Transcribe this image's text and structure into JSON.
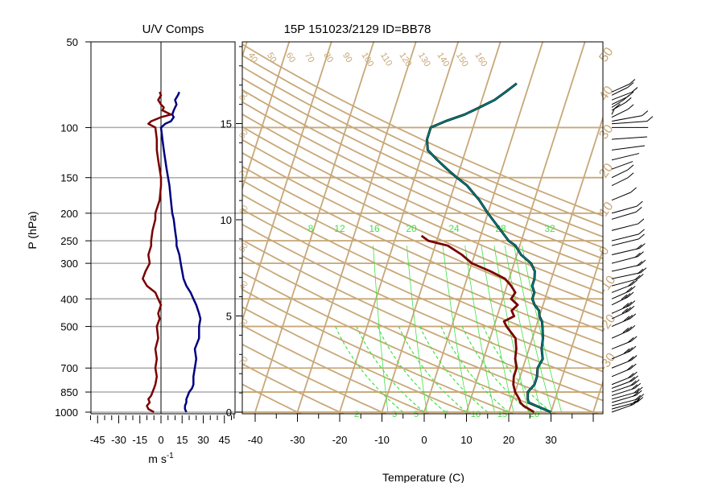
{
  "colors": {
    "background": "#FFFFFF",
    "isopleth": "#C8A878",
    "temperature": "#7A0000",
    "dewpoint_outer": "#003030",
    "dewpoint_inner": "#008C8C",
    "mixing_ratio": "#44E044",
    "u_component": "#7A0000",
    "v_component": "#000080",
    "gridline": "#AAAAAA"
  },
  "chart_data": [
    {
      "type": "line",
      "title": "U/V Comps",
      "xlabel": "m s",
      "xlabel_sup": "-1",
      "ylabel": "P (hPa)",
      "xlim": [
        -50,
        50
      ],
      "ylim": [
        1000,
        50
      ],
      "y_scale": "log",
      "x_ticks": [
        -45,
        -30,
        -15,
        0,
        15,
        30,
        45
      ],
      "y_ticks": [
        50,
        100,
        150,
        200,
        250,
        300,
        400,
        500,
        700,
        850,
        1000
      ],
      "y_gridlines": [
        100,
        150,
        200,
        250,
        300,
        400,
        500,
        700,
        850,
        1000
      ],
      "series": [
        {
          "key": "u",
          "pressure": [
            1000,
            975,
            950,
            925,
            900,
            875,
            850,
            825,
            800,
            750,
            700,
            650,
            600,
            550,
            500,
            470,
            450,
            420,
            400,
            380,
            360,
            340,
            320,
            300,
            280,
            260,
            250,
            230,
            210,
            200,
            180,
            160,
            150,
            140,
            130,
            120,
            110,
            100,
            97,
            95,
            92,
            90,
            87,
            85,
            83,
            80,
            77,
            75
          ],
          "values": [
            -5,
            -9,
            -10,
            -8,
            -9,
            -7,
            -6,
            -5,
            -4,
            -3,
            -4,
            -3,
            -4,
            -2,
            -3,
            -1,
            -2,
            0,
            -2,
            -4,
            -10,
            -13,
            -11,
            -8,
            -9,
            -7,
            -7,
            -6,
            -4,
            -4,
            -1,
            0,
            0,
            -1,
            -2,
            -3,
            -3,
            -4,
            -9,
            -7,
            0,
            7,
            1,
            2,
            0,
            -2,
            0,
            -1
          ]
        },
        {
          "key": "v",
          "pressure": [
            1000,
            975,
            950,
            925,
            900,
            875,
            850,
            825,
            800,
            750,
            700,
            650,
            600,
            550,
            500,
            470,
            450,
            420,
            400,
            380,
            360,
            340,
            320,
            300,
            280,
            260,
            250,
            230,
            210,
            200,
            180,
            160,
            150,
            140,
            130,
            120,
            110,
            100,
            97,
            95,
            92,
            90,
            87,
            85,
            83,
            80,
            77,
            75
          ],
          "values": [
            18,
            17,
            17,
            18,
            18,
            19,
            20,
            22,
            23,
            23,
            24,
            25,
            24,
            27,
            27,
            28,
            27,
            25,
            23,
            21,
            18,
            16,
            15,
            14,
            13,
            11,
            11,
            10,
            9,
            8,
            7,
            6,
            5,
            4,
            3,
            2,
            1,
            0,
            3,
            7,
            9,
            8,
            9,
            10,
            11,
            10,
            12,
            13
          ]
        }
      ]
    },
    {
      "type": "line",
      "title": "15P 151023/2129 ID=BB78",
      "xlabel": "Temperature (C)",
      "xlim": [
        -45,
        45
      ],
      "x_ticks": [
        -40,
        -30,
        -20,
        -10,
        0,
        10,
        20,
        30
      ],
      "height_ticks": [
        0,
        5,
        10,
        15
      ],
      "mixing_ratio_labels": [
        "8",
        "12",
        "16",
        "20",
        "24",
        "28",
        "32"
      ],
      "isotherm_labels": [
        "40",
        "50",
        "60",
        "70",
        "80",
        "90",
        "100",
        "110",
        "120",
        "130",
        "140",
        "150",
        "160"
      ],
      "diagonal_labels": [
        "20",
        "30",
        "40",
        "50",
        "60",
        "70",
        "80",
        "90"
      ],
      "right_labels": [
        "50",
        "40",
        "30",
        "20",
        "10",
        "0",
        "-10",
        "-20",
        "-30"
      ],
      "small_markers": [
        "2",
        "3",
        "5",
        "7",
        "10",
        "15",
        "20"
      ],
      "series": [
        {
          "key": "temperature",
          "pressure": [
            1000,
            950,
            925,
            900,
            850,
            800,
            750,
            700,
            650,
            600,
            550,
            500,
            480,
            460,
            440,
            420,
            400,
            380,
            360,
            340,
            320,
            300,
            280,
            260,
            250,
            240
          ],
          "values": [
            26,
            23,
            22,
            21.5,
            20,
            19,
            18.5,
            18.5,
            17.5,
            17,
            16,
            13,
            12,
            14,
            13,
            14,
            12,
            12.5,
            11,
            9,
            5,
            0,
            -3,
            -7,
            -12,
            -14
          ]
        },
        {
          "key": "dewpoint",
          "pressure": [
            1000,
            950,
            925,
            900,
            850,
            800,
            750,
            700,
            650,
            600,
            550,
            500,
            480,
            460,
            440,
            420,
            400,
            380,
            360,
            340,
            320,
            300,
            280,
            260,
            250,
            220,
            200,
            180,
            160,
            150,
            140,
            130,
            120,
            110,
            100,
            95,
            90,
            85,
            80,
            75,
            70
          ],
          "values": [
            30,
            26,
            24,
            23.5,
            23,
            24,
            24,
            23.5,
            24,
            23,
            22.5,
            21.5,
            21,
            20,
            19.5,
            18,
            17,
            17,
            16,
            16,
            15.5,
            14,
            11,
            9,
            7,
            3,
            0,
            -3,
            -7,
            -10,
            -13,
            -16,
            -19,
            -20,
            -20,
            -17,
            -13,
            -10,
            -7,
            -5,
            -3
          ]
        }
      ]
    }
  ]
}
